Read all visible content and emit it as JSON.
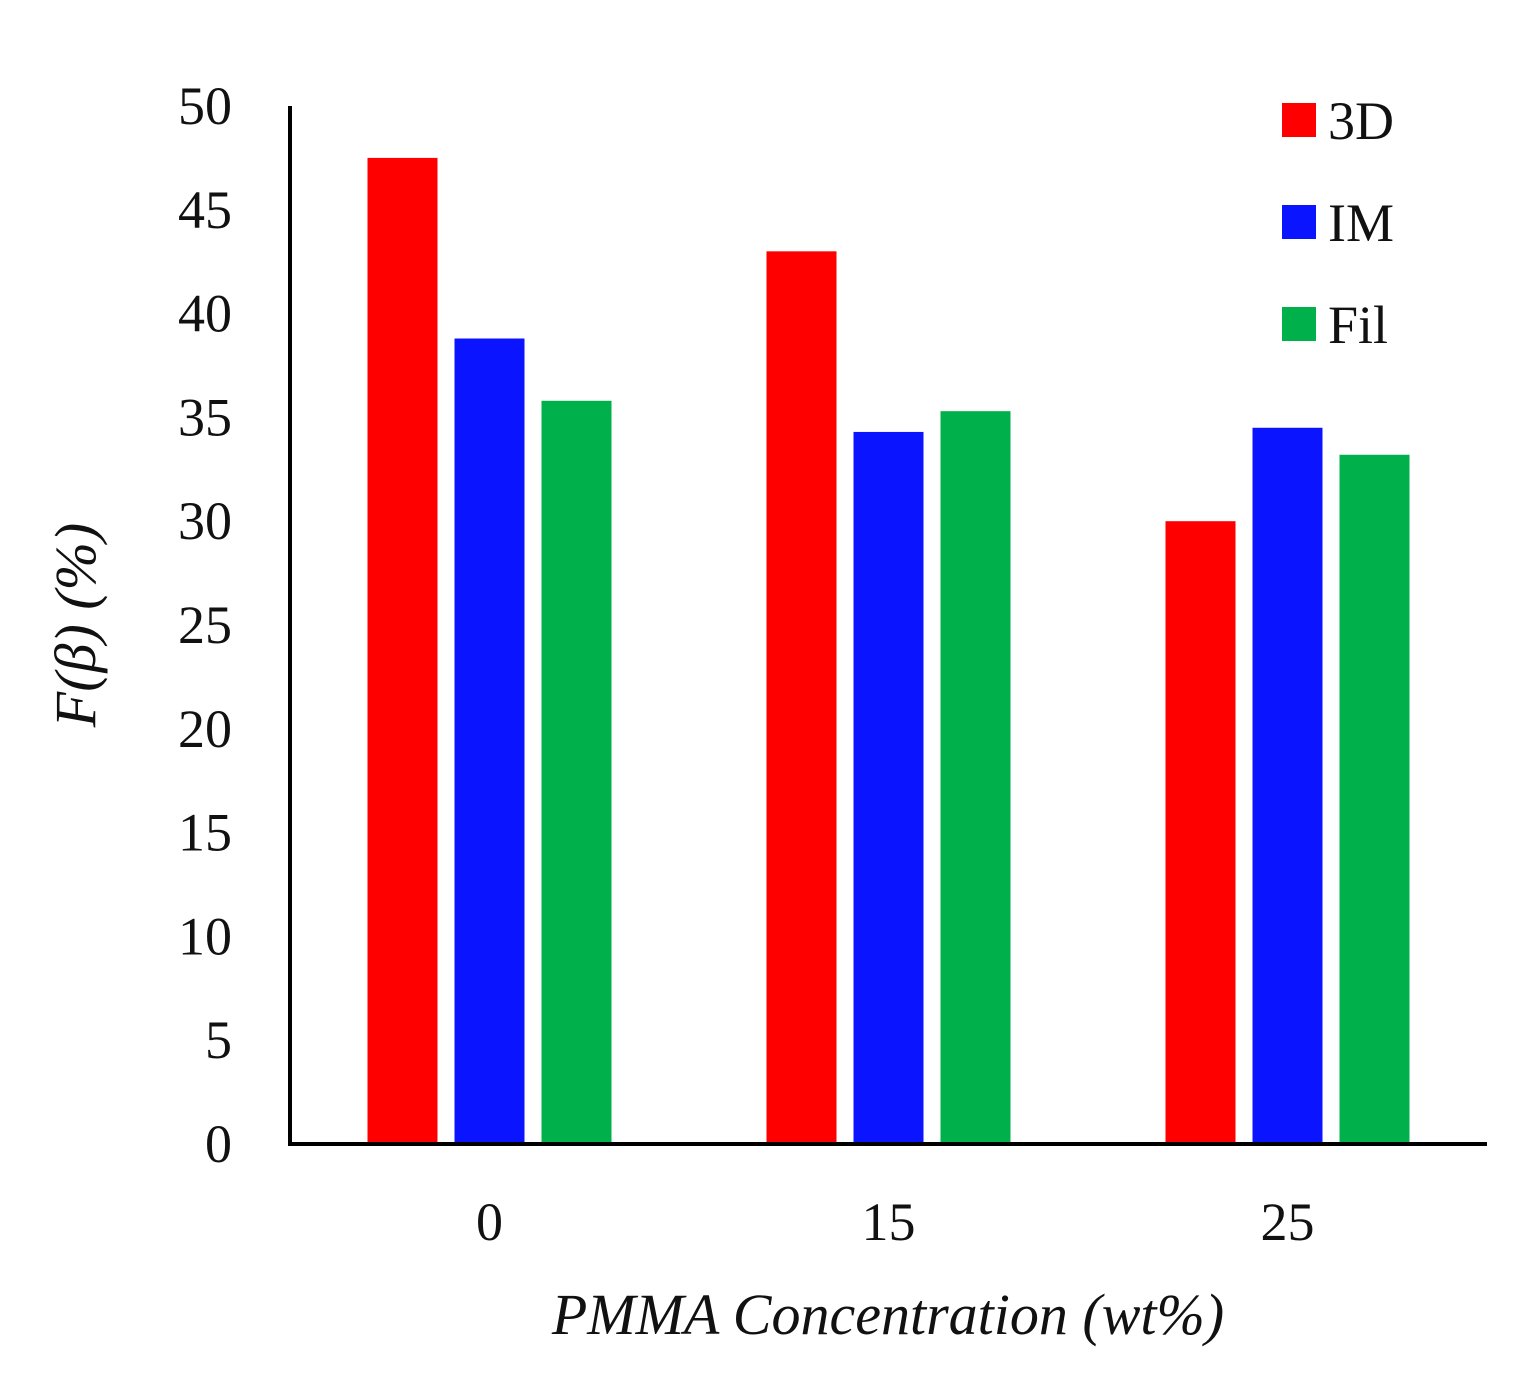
{
  "chart_data": {
    "type": "bar",
    "title": "",
    "xlabel": "PMMA Concentration (wt%)",
    "ylabel": "F(β)  (%)",
    "categories": [
      "0",
      "15",
      "25"
    ],
    "ylim": [
      0,
      50
    ],
    "yticks": [
      0,
      5,
      10,
      15,
      20,
      25,
      30,
      35,
      40,
      45,
      50
    ],
    "grid": false,
    "legend_position": "top-right",
    "series": [
      {
        "name": "3D",
        "color": "#ff0000",
        "values": [
          47.5,
          43.0,
          30.0
        ]
      },
      {
        "name": "IM",
        "color": "#0a14ff",
        "values": [
          38.8,
          34.3,
          34.5
        ]
      },
      {
        "name": "Fil",
        "color": "#00b04a",
        "values": [
          35.8,
          35.3,
          33.2
        ]
      }
    ]
  }
}
